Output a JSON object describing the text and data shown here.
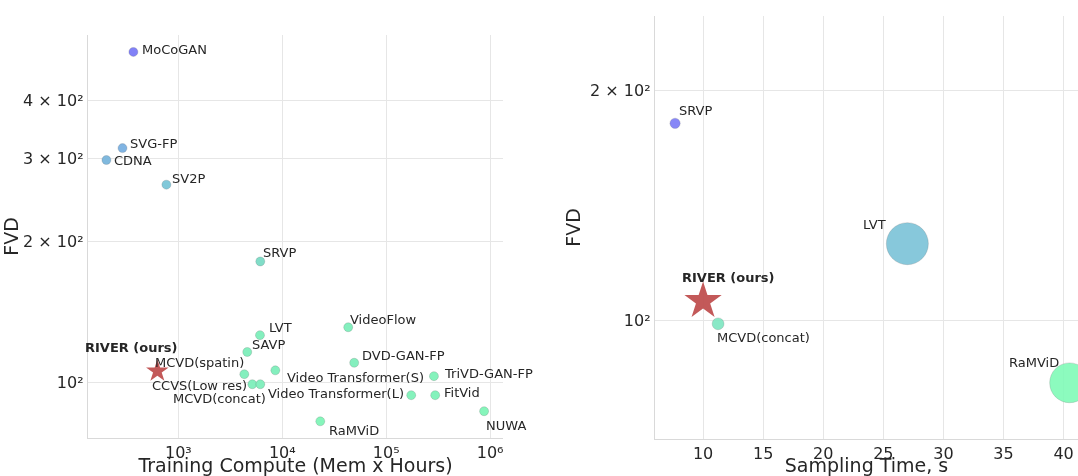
{
  "chart_data": [
    {
      "type": "scatter",
      "xlabel": "Training Compute (Mem x Hours)",
      "ylabel": "FVD",
      "log": "xy",
      "grid": true,
      "marker": "circle",
      "xlim": [
        135,
        1330000
      ],
      "ylim": [
        76,
        551
      ],
      "xticks": [
        {
          "value": 1000,
          "label": "10³"
        },
        {
          "value": 10000,
          "label": "10⁴"
        },
        {
          "value": 100000,
          "label": "10⁵"
        },
        {
          "value": 1000000,
          "label": "10⁶"
        }
      ],
      "yticks": [
        {
          "value": 100,
          "label": "10²"
        },
        {
          "value": 200,
          "label": "2 × 10²"
        },
        {
          "value": 300,
          "label": "3 × 10²"
        },
        {
          "value": 400,
          "label": "4 × 10²"
        }
      ],
      "series": [
        {
          "name": "MoCoGAN",
          "color": "#7b7bf7",
          "x": [
            369
          ],
          "values": [
            507
          ]
        },
        {
          "name": "SVG-FP",
          "color": "#7ab0e2",
          "x": [
            290
          ],
          "values": [
            316
          ]
        },
        {
          "name": "CDNA",
          "color": "#7ab6dd",
          "x": [
            203
          ],
          "values": [
            298
          ]
        },
        {
          "name": "SV2P",
          "color": "#7bc6d8",
          "x": [
            767
          ],
          "values": [
            264
          ]
        },
        {
          "name": "SRVP",
          "color": "#7bdcc6",
          "x": [
            6140
          ],
          "values": [
            181
          ]
        },
        {
          "name": "VideoFlow",
          "color": "#7eefbb",
          "x": [
            43100
          ],
          "values": [
            131
          ]
        },
        {
          "name": "LVT",
          "color": "#7eefbb",
          "x": [
            6100
          ],
          "values": [
            126
          ]
        },
        {
          "name": "SAVP",
          "color": "#7eefbb",
          "x": [
            4600
          ],
          "values": [
            116
          ]
        },
        {
          "name": "DVD-GAN-FP",
          "color": "#7eefbb",
          "x": [
            49200
          ],
          "values": [
            110
          ]
        },
        {
          "name": "Video Transformer(S)",
          "color": "#7eefbb",
          "x": [
            8570
          ],
          "values": [
            106
          ]
        },
        {
          "name": "MCVD(spatin)",
          "color": "#7eefbb",
          "x": [
            4310
          ],
          "values": [
            104
          ]
        },
        {
          "name": "RIVER (ours)",
          "color": "#c05050",
          "marker": "star",
          "x": [
            628
          ],
          "values": [
            105.6
          ]
        },
        {
          "name": "CCVS(Low res)",
          "color": "#7eefbb",
          "x": [
            5150
          ],
          "values": [
            99
          ]
        },
        {
          "name": "MCVD(concat)",
          "color": "#7eefbb",
          "x": [
            6140
          ],
          "values": [
            99
          ]
        },
        {
          "name": "TriVD-GAN-FP",
          "color": "#7ff2b9",
          "x": [
            288000
          ],
          "values": [
            103
          ]
        },
        {
          "name": "Video Transformer(L)",
          "color": "#7ff2b9",
          "x": [
            174000
          ],
          "values": [
            93.8
          ]
        },
        {
          "name": "FitVid",
          "color": "#7ff2b9",
          "x": [
            296000
          ],
          "values": [
            93.8
          ]
        },
        {
          "name": "NUWA",
          "color": "#80f5b8",
          "x": [
            875000
          ],
          "values": [
            86.7
          ]
        },
        {
          "name": "RaMViD",
          "color": "#80f5b8",
          "x": [
            23200
          ],
          "values": [
            82.5
          ]
        }
      ]
    },
    {
      "type": "bubble",
      "xlabel": "Sampling Time, s",
      "ylabel": "FVD",
      "log": "y",
      "grid": true,
      "marker": "circle",
      "xlim": [
        6,
        41.2
      ],
      "ylim": [
        70,
        250
      ],
      "xticks": [
        10,
        15,
        20,
        25,
        30,
        35,
        40
      ],
      "yticks": [
        {
          "value": 100,
          "label": "10²"
        },
        {
          "value": 200,
          "label": "2 × 10²"
        }
      ],
      "series": [
        {
          "name": "SRVP",
          "color": "#7b7bf7",
          "x": [
            7.67
          ],
          "values": [
            181
          ],
          "sizes": [
            0.06
          ]
        },
        {
          "name": "LVT",
          "color": "#7bc3d8",
          "x": [
            27
          ],
          "values": [
            126
          ],
          "sizes": [
            1
          ]
        },
        {
          "name": "RIVER (ours)",
          "type": "scatter",
          "marker": "star",
          "color": "#c05050",
          "x": [
            10
          ],
          "values": [
            106
          ]
        },
        {
          "name": "MCVD(concat)",
          "color": "#7de6c0",
          "x": [
            11.25
          ],
          "values": [
            99
          ],
          "sizes": [
            0.08
          ]
        },
        {
          "name": "RaMViD",
          "color": "#80fbb8",
          "x": [
            40.5
          ],
          "values": [
            82.9
          ],
          "sizes": [
            0.9
          ]
        }
      ]
    }
  ]
}
